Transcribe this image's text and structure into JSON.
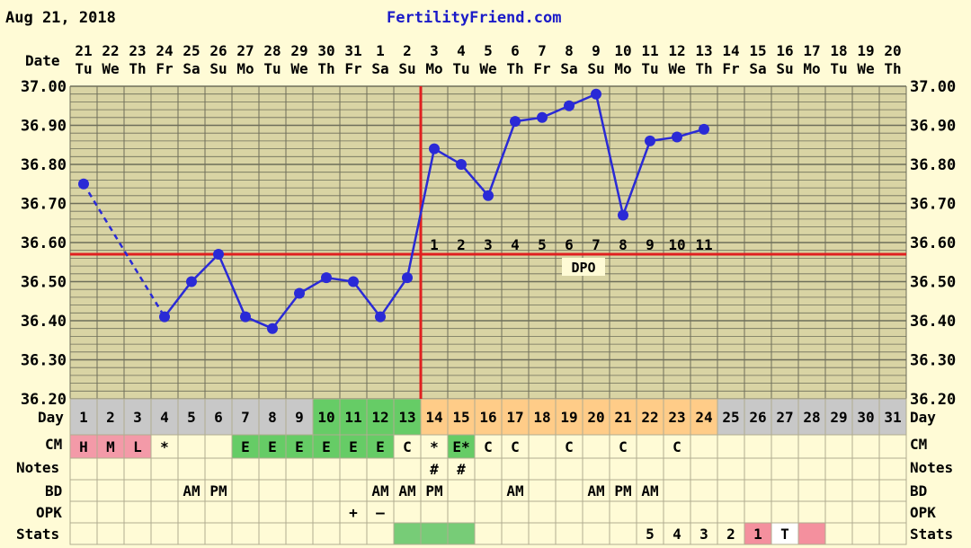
{
  "header": {
    "date": "Aug 21, 2018",
    "brand": "FertilityFriend.com"
  },
  "labels": {
    "date": "Date",
    "day": "Day",
    "cm": "CM",
    "notes": "Notes",
    "bd": "BD",
    "opk": "OPK",
    "stats": "Stats",
    "dpo": "DPO"
  },
  "colors": {
    "background": "#fffbd6",
    "chart_bg": "#d9d4a4",
    "grid": "#6e6e5a",
    "line": "#2a2ad6",
    "coverline": "#e02020",
    "brand": "#1a1ac8",
    "day_gray": "#c8c8c8",
    "day_green": "#66cc66",
    "day_orange": "#ffcc88",
    "cm_pink": "#f39aa8",
    "cm_green": "#66cc66",
    "stats_green": "#77cc77",
    "stats_pink": "#f4909e"
  },
  "columns": [
    {
      "date": "21",
      "dow": "Tu",
      "day": "1"
    },
    {
      "date": "22",
      "dow": "We",
      "day": "2"
    },
    {
      "date": "23",
      "dow": "Th",
      "day": "3"
    },
    {
      "date": "24",
      "dow": "Fr",
      "day": "4"
    },
    {
      "date": "25",
      "dow": "Sa",
      "day": "5"
    },
    {
      "date": "26",
      "dow": "Su",
      "day": "6"
    },
    {
      "date": "27",
      "dow": "Mo",
      "day": "7"
    },
    {
      "date": "28",
      "dow": "Tu",
      "day": "8"
    },
    {
      "date": "29",
      "dow": "We",
      "day": "9"
    },
    {
      "date": "30",
      "dow": "Th",
      "day": "10"
    },
    {
      "date": "31",
      "dow": "Fr",
      "day": "11"
    },
    {
      "date": "1",
      "dow": "Sa",
      "day": "12"
    },
    {
      "date": "2",
      "dow": "Su",
      "day": "13"
    },
    {
      "date": "3",
      "dow": "Mo",
      "day": "14"
    },
    {
      "date": "4",
      "dow": "Tu",
      "day": "15"
    },
    {
      "date": "5",
      "dow": "We",
      "day": "16"
    },
    {
      "date": "6",
      "dow": "Th",
      "day": "17"
    },
    {
      "date": "7",
      "dow": "Fr",
      "day": "18"
    },
    {
      "date": "8",
      "dow": "Sa",
      "day": "19"
    },
    {
      "date": "9",
      "dow": "Su",
      "day": "20"
    },
    {
      "date": "10",
      "dow": "Mo",
      "day": "21"
    },
    {
      "date": "11",
      "dow": "Tu",
      "day": "22"
    },
    {
      "date": "12",
      "dow": "We",
      "day": "23"
    },
    {
      "date": "13",
      "dow": "Th",
      "day": "24"
    },
    {
      "date": "14",
      "dow": "Fr",
      "day": "25"
    },
    {
      "date": "15",
      "dow": "Sa",
      "day": "26"
    },
    {
      "date": "16",
      "dow": "Su",
      "day": "27"
    },
    {
      "date": "17",
      "dow": "Mo",
      "day": "28"
    },
    {
      "date": "18",
      "dow": "Tu",
      "day": "29"
    },
    {
      "date": "19",
      "dow": "We",
      "day": "30"
    },
    {
      "date": "20",
      "dow": "Th",
      "day": "31"
    }
  ],
  "day_colors": [
    "gray",
    "gray",
    "gray",
    "gray",
    "gray",
    "gray",
    "gray",
    "gray",
    "gray",
    "green",
    "green",
    "green",
    "green",
    "orange",
    "orange",
    "orange",
    "orange",
    "orange",
    "orange",
    "orange",
    "orange",
    "orange",
    "orange",
    "orange",
    "gray",
    "gray",
    "gray",
    "gray",
    "gray",
    "gray",
    "gray"
  ],
  "rows": {
    "cm": [
      "H",
      "M",
      "L",
      "*",
      "",
      "",
      "E",
      "E",
      "E",
      "E",
      "E",
      "E",
      "C",
      "*",
      "E*",
      "C",
      "C",
      "",
      "C",
      "",
      "C",
      "",
      "C",
      "",
      "",
      "",
      "",
      "",
      "",
      "",
      ""
    ],
    "cm_colors": [
      "pink",
      "pink",
      "pink",
      "",
      "",
      "",
      "green",
      "green",
      "green",
      "green",
      "green",
      "green",
      "",
      "",
      "green",
      "",
      "",
      "",
      "",
      "",
      "",
      "",
      "",
      "",
      "",
      "",
      "",
      "",
      "",
      "",
      ""
    ],
    "notes": [
      "",
      "",
      "",
      "",
      "",
      "",
      "",
      "",
      "",
      "",
      "",
      "",
      "",
      "#",
      "#",
      "",
      "",
      "",
      "",
      "",
      "",
      "",
      "",
      "",
      "",
      "",
      "",
      "",
      "",
      "",
      ""
    ],
    "bd": [
      "",
      "",
      "",
      "",
      "AM",
      "PM",
      "",
      "",
      "",
      "",
      "",
      "AM",
      "AM",
      "PM",
      "",
      "",
      "AM",
      "",
      "",
      "AM",
      "PM",
      "AM",
      "",
      "",
      "",
      "",
      "",
      "",
      "",
      "",
      ""
    ],
    "opk": [
      "",
      "",
      "",
      "",
      "",
      "",
      "",
      "",
      "",
      "",
      "+",
      "–",
      "",
      "",
      "",
      "",
      "",
      "",
      "",
      "",
      "",
      "",
      "",
      "",
      "",
      "",
      "",
      "",
      "",
      "",
      ""
    ],
    "stats": [
      "",
      "",
      "",
      "",
      "",
      "",
      "",
      "",
      "",
      "",
      "",
      "",
      "",
      "",
      "",
      "",
      "",
      "",
      "",
      "",
      "",
      "5",
      "4",
      "3",
      "2",
      "1",
      "T",
      "",
      "",
      "",
      ""
    ],
    "stats_colors": [
      "",
      "",
      "",
      "",
      "",
      "",
      "",
      "",
      "",
      "",
      "",
      "",
      "green",
      "green",
      "green",
      "",
      "",
      "",
      "",
      "",
      "",
      "",
      "",
      "",
      "",
      "pink",
      "white",
      "pink",
      "",
      "",
      ""
    ]
  },
  "chart_data": {
    "type": "line",
    "x": [
      1,
      2,
      3,
      4,
      5,
      6,
      7,
      8,
      9,
      10,
      11,
      12,
      13,
      14,
      15,
      16,
      17,
      18,
      19,
      20,
      21,
      22,
      23,
      24
    ],
    "series": [
      {
        "values": [
          36.75,
          null,
          null,
          36.41,
          36.5,
          36.57,
          36.41,
          36.38,
          36.47,
          36.51,
          36.5,
          36.41,
          36.51,
          36.84,
          36.8,
          36.72,
          36.91,
          36.92,
          36.95,
          36.98,
          36.67,
          36.86,
          36.87,
          36.89
        ]
      }
    ],
    "gap": {
      "from_day": 1,
      "to_day": 4,
      "style": "dashed"
    },
    "ylim": [
      36.2,
      37.0
    ],
    "yticks": [
      "36.20",
      "36.30",
      "36.40",
      "36.50",
      "36.60",
      "36.70",
      "36.80",
      "36.90",
      "37.00"
    ],
    "coverline": 36.57,
    "ovulation_day": 13,
    "dpo_labels": [
      "1",
      "2",
      "3",
      "4",
      "5",
      "6",
      "7",
      "8",
      "9",
      "10",
      "11"
    ],
    "dpo_start_day": 14,
    "grid": true
  }
}
